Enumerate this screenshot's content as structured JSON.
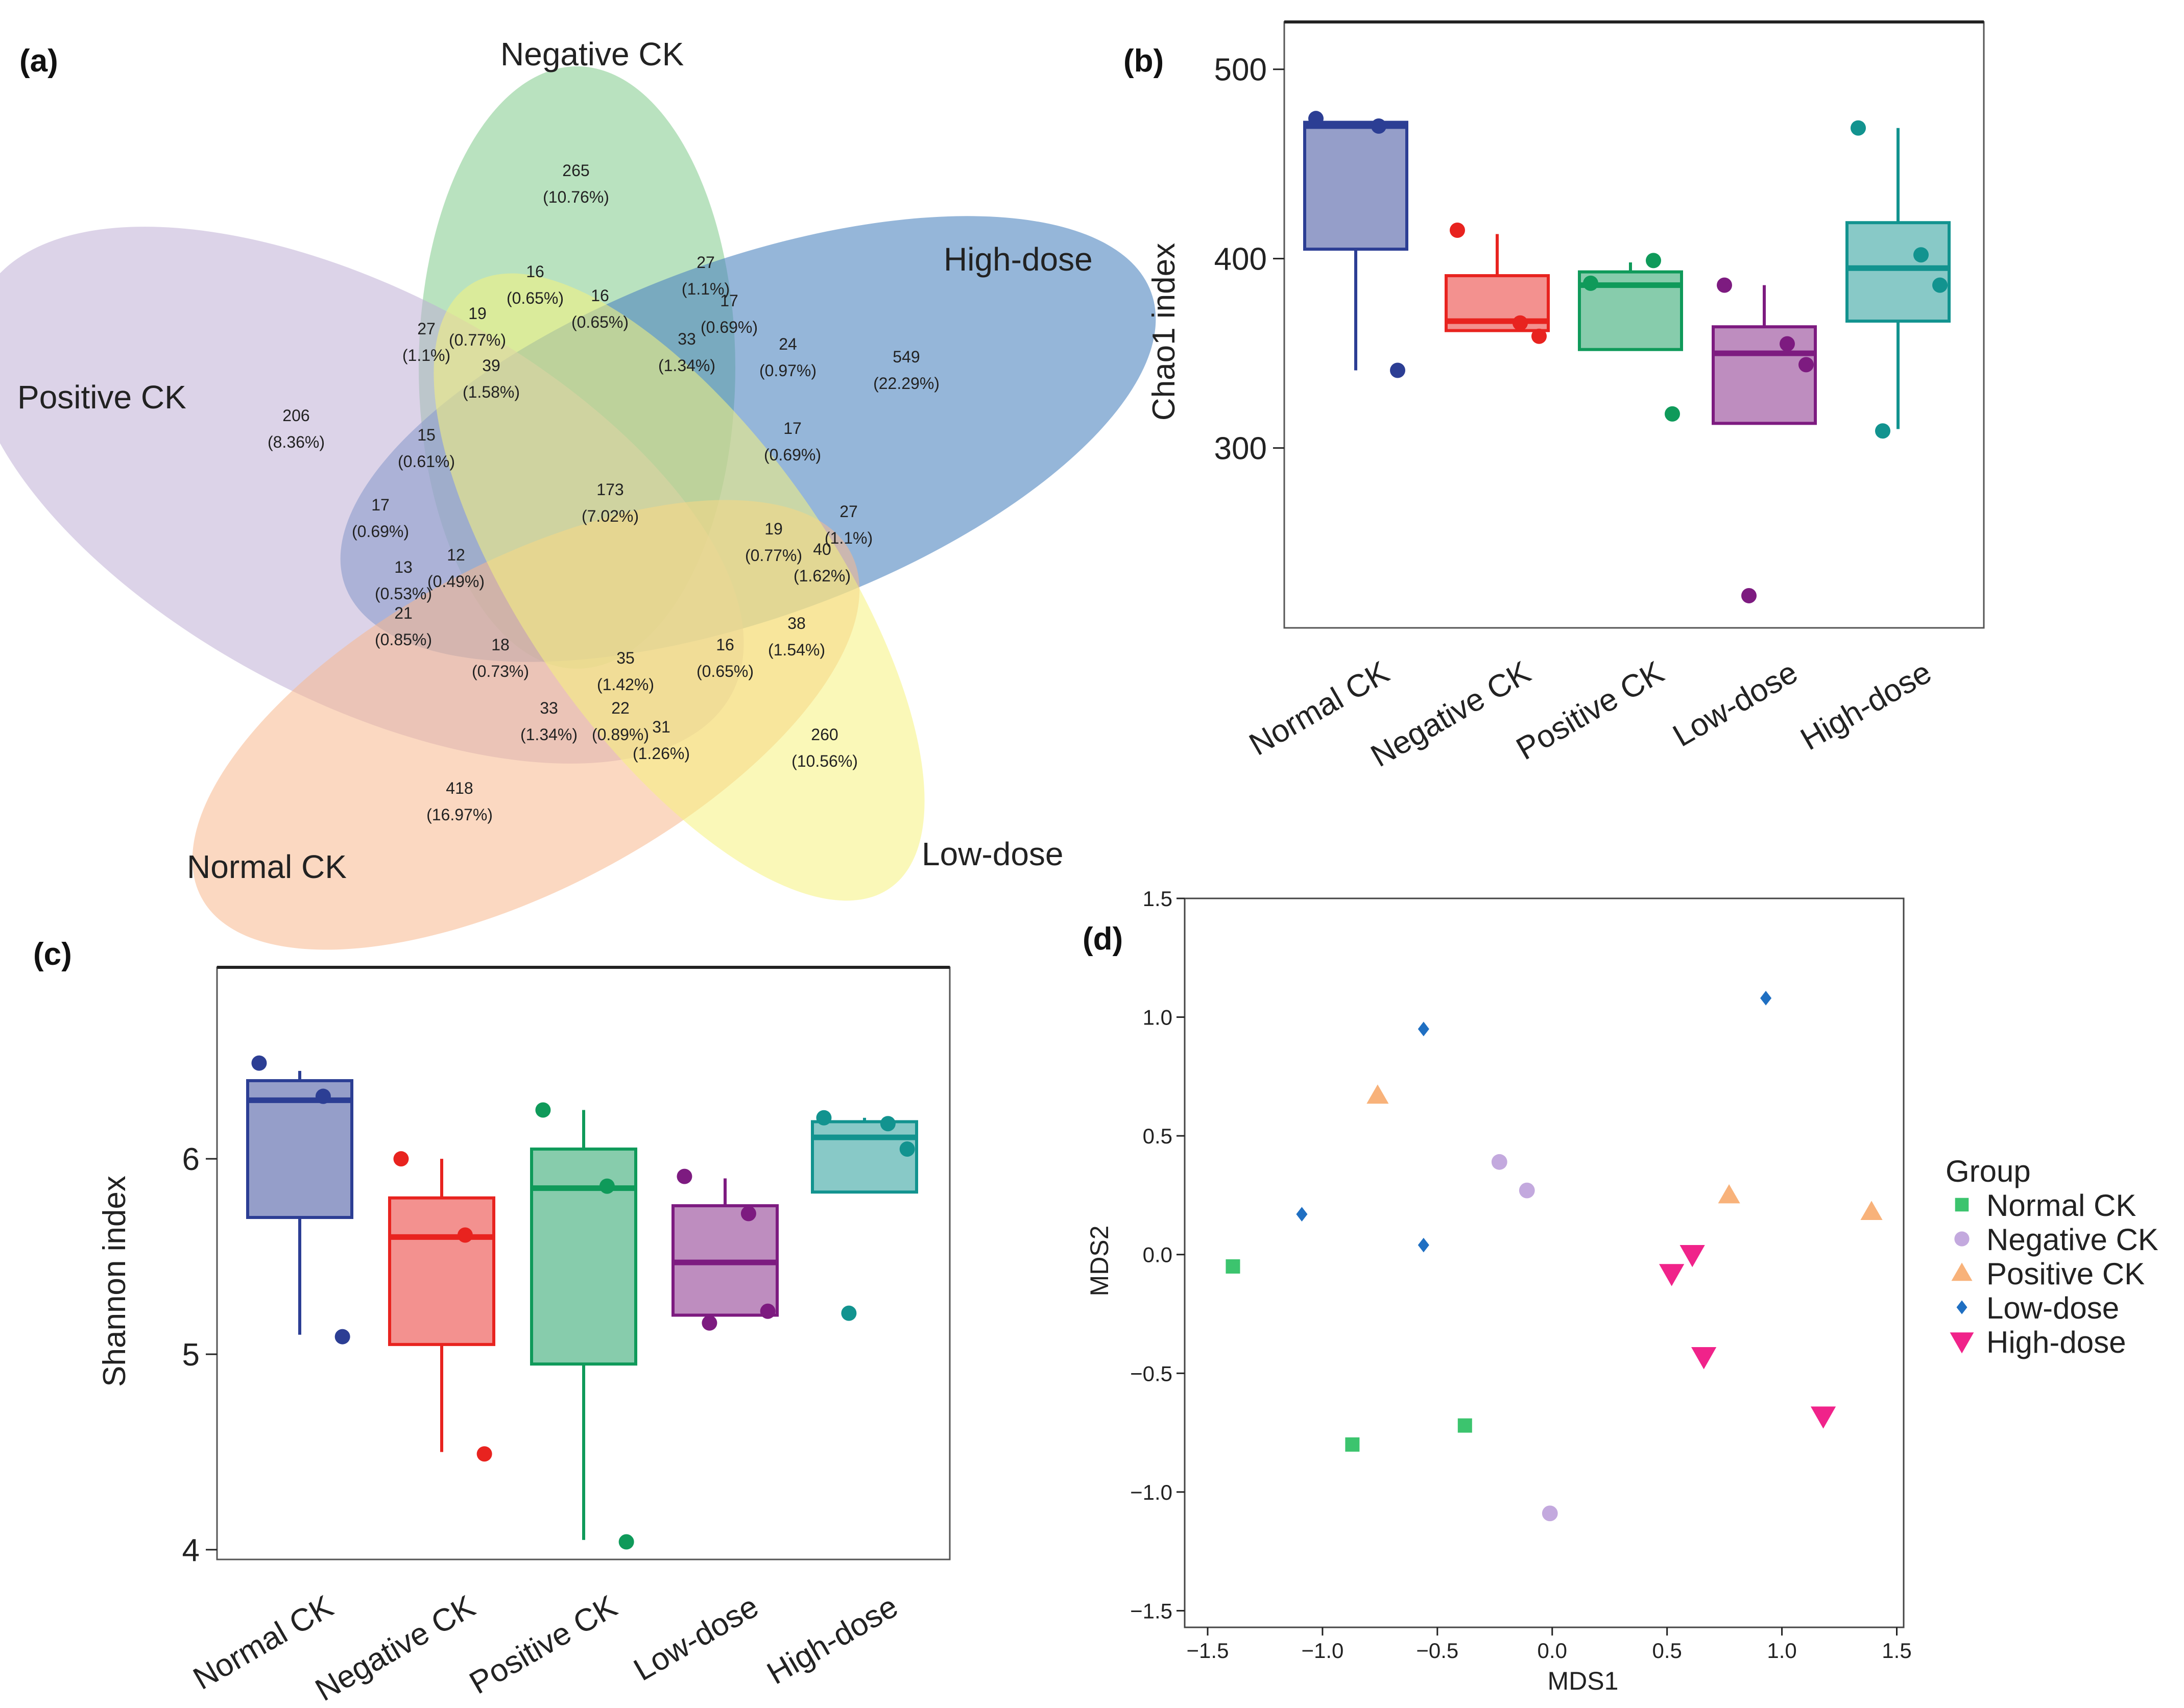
{
  "panels": {
    "a": "(a)",
    "b": "(b)",
    "c": "(c)",
    "d": "(d)"
  },
  "venn": {
    "sets": [
      {
        "name": "Negative CK",
        "color": "#7fca8a"
      },
      {
        "name": "High-dose",
        "color": "#4f86c0"
      },
      {
        "name": "Positive CK",
        "color": "#bfaed6"
      },
      {
        "name": "Normal CK",
        "color": "#f7b88e"
      },
      {
        "name": "Low-dose",
        "color": "#f6f27e"
      }
    ],
    "regions": [
      {
        "count": "265",
        "pct": "(10.76%)"
      },
      {
        "count": "549",
        "pct": "(22.29%)"
      },
      {
        "count": "206",
        "pct": "(8.36%)"
      },
      {
        "count": "418",
        "pct": "(16.97%)"
      },
      {
        "count": "260",
        "pct": "(10.56%)"
      },
      {
        "count": "173",
        "pct": "(7.02%)"
      },
      {
        "count": "16",
        "pct": "(0.65%)"
      },
      {
        "count": "27",
        "pct": "(1.1%)"
      },
      {
        "count": "19",
        "pct": "(0.77%)"
      },
      {
        "count": "16",
        "pct": "(0.65%)"
      },
      {
        "count": "17",
        "pct": "(0.69%)"
      },
      {
        "count": "33",
        "pct": "(1.34%)"
      },
      {
        "count": "24",
        "pct": "(0.97%)"
      },
      {
        "count": "27",
        "pct": "(1.1%)"
      },
      {
        "count": "39",
        "pct": "(1.58%)"
      },
      {
        "count": "15",
        "pct": "(0.61%)"
      },
      {
        "count": "17",
        "pct": "(0.69%)"
      },
      {
        "count": "17",
        "pct": "(0.69%)"
      },
      {
        "count": "27",
        "pct": "(1.1%)"
      },
      {
        "count": "19",
        "pct": "(0.77%)"
      },
      {
        "count": "40",
        "pct": "(1.62%)"
      },
      {
        "count": "13",
        "pct": "(0.53%)"
      },
      {
        "count": "12",
        "pct": "(0.49%)"
      },
      {
        "count": "21",
        "pct": "(0.85%)"
      },
      {
        "count": "38",
        "pct": "(1.54%)"
      },
      {
        "count": "18",
        "pct": "(0.73%)"
      },
      {
        "count": "35",
        "pct": "(1.42%)"
      },
      {
        "count": "16",
        "pct": "(0.65%)"
      },
      {
        "count": "33",
        "pct": "(1.34%)"
      },
      {
        "count": "22",
        "pct": "(0.89%)"
      },
      {
        "count": "31",
        "pct": "(1.26%)"
      }
    ]
  },
  "chart_data": [
    {
      "panel": "b",
      "type": "box",
      "ylabel": "Chao1 index",
      "ylim": [
        205,
        525
      ],
      "yticks": [
        300,
        400,
        500
      ],
      "categories": [
        "Normal CK",
        "Negative CK",
        "Positive CK",
        "Low-dose",
        "High-dose"
      ],
      "colors": [
        "#2c3e94",
        "#e8231f",
        "#0f9a5a",
        "#7d1b80",
        "#12938f"
      ],
      "boxes": [
        {
          "q1": 405,
          "median": 470,
          "q3": 472,
          "whisker_low": 341,
          "whisker_high": 472,
          "points": [
            474,
            470,
            341
          ]
        },
        {
          "q1": 362,
          "median": 367,
          "q3": 391,
          "whisker_low": 362,
          "whisker_high": 413,
          "points": [
            415,
            366,
            359
          ]
        },
        {
          "q1": 352,
          "median": 386,
          "q3": 393,
          "whisker_low": 352,
          "whisker_high": 398,
          "points": [
            387,
            399,
            318
          ]
        },
        {
          "q1": 313,
          "median": 350,
          "q3": 364,
          "whisker_low": 313,
          "whisker_high": 386,
          "points": [
            386,
            355,
            344,
            222
          ]
        },
        {
          "q1": 367,
          "median": 395,
          "q3": 419,
          "whisker_low": 310,
          "whisker_high": 469,
          "points": [
            469,
            402,
            386,
            309
          ]
        }
      ]
    },
    {
      "panel": "c",
      "type": "box",
      "ylabel": "Shannon index",
      "ylim": [
        3.95,
        6.98
      ],
      "yticks": [
        4,
        5,
        6
      ],
      "categories": [
        "Normal CK",
        "Negative CK",
        "Positive CK",
        "Low-dose",
        "High-dose"
      ],
      "colors": [
        "#2c3e94",
        "#e8231f",
        "#0f9a5a",
        "#7d1b80",
        "#12938f"
      ],
      "boxes": [
        {
          "q1": 5.7,
          "median": 6.3,
          "q3": 6.4,
          "whisker_low": 5.1,
          "whisker_high": 6.45,
          "points": [
            6.49,
            6.32,
            5.09
          ]
        },
        {
          "q1": 5.05,
          "median": 5.6,
          "q3": 5.8,
          "whisker_low": 4.5,
          "whisker_high": 6.0,
          "points": [
            6.0,
            5.61,
            4.49
          ]
        },
        {
          "q1": 4.95,
          "median": 5.85,
          "q3": 6.05,
          "whisker_low": 4.05,
          "whisker_high": 6.25,
          "points": [
            6.25,
            5.86,
            4.04
          ]
        },
        {
          "q1": 5.2,
          "median": 5.47,
          "q3": 5.76,
          "whisker_low": 5.2,
          "whisker_high": 5.9,
          "points": [
            5.91,
            5.72,
            5.22,
            5.16
          ]
        },
        {
          "q1": 5.83,
          "median": 6.11,
          "q3": 6.19,
          "whisker_low": 5.83,
          "whisker_high": 6.21,
          "points": [
            6.21,
            6.18,
            6.05,
            5.21
          ]
        }
      ]
    },
    {
      "panel": "d",
      "type": "scatter",
      "xlabel": "MDS1",
      "ylabel": "MDS2",
      "xlim": [
        -1.6,
        1.53
      ],
      "ylim": [
        -1.57,
        1.5
      ],
      "xticks": [
        -1.5,
        -1.0,
        -0.5,
        0.0,
        0.5,
        1.0,
        1.5
      ],
      "xtick_labels": [
        "−1.5",
        "−1.0",
        "−0.5",
        "0.0",
        "0.5",
        "1.0",
        "1.5"
      ],
      "yticks": [
        -1.5,
        -1.0,
        -0.5,
        0.0,
        0.5,
        1.0,
        1.5
      ],
      "ytick_labels": [
        "−1.5",
        "−1.0",
        "−0.5",
        "0.0",
        "0.5",
        "1.0",
        "1.5"
      ],
      "legend_title": "Group",
      "legend_position": "right",
      "series": [
        {
          "name": "Normal CK",
          "color": "#3cc46e",
          "shape": "square",
          "points": [
            [
              -1.39,
              -0.05
            ],
            [
              -0.87,
              -0.8
            ],
            [
              -0.38,
              -0.72
            ]
          ]
        },
        {
          "name": "Negative CK",
          "color": "#c3a9de",
          "shape": "circle",
          "points": [
            [
              -0.23,
              0.39
            ],
            [
              -0.11,
              0.27
            ],
            [
              -0.01,
              -1.09
            ]
          ]
        },
        {
          "name": "Positive CK",
          "color": "#f8b27a",
          "shape": "triangle",
          "points": [
            [
              -0.76,
              0.67
            ],
            [
              0.77,
              0.25
            ],
            [
              1.39,
              0.18
            ]
          ]
        },
        {
          "name": "Low-dose",
          "color": "#1f6fc2",
          "shape": "diamond",
          "points": [
            [
              -0.56,
              0.95
            ],
            [
              -1.09,
              0.17
            ],
            [
              -0.56,
              0.04
            ],
            [
              0.93,
              1.08
            ]
          ]
        },
        {
          "name": "High-dose",
          "color": "#f0238a",
          "shape": "triangle-down",
          "points": [
            [
              0.52,
              -0.08
            ],
            [
              0.61,
              0.0
            ],
            [
              0.66,
              -0.43
            ],
            [
              1.18,
              -0.68
            ]
          ]
        }
      ]
    }
  ]
}
